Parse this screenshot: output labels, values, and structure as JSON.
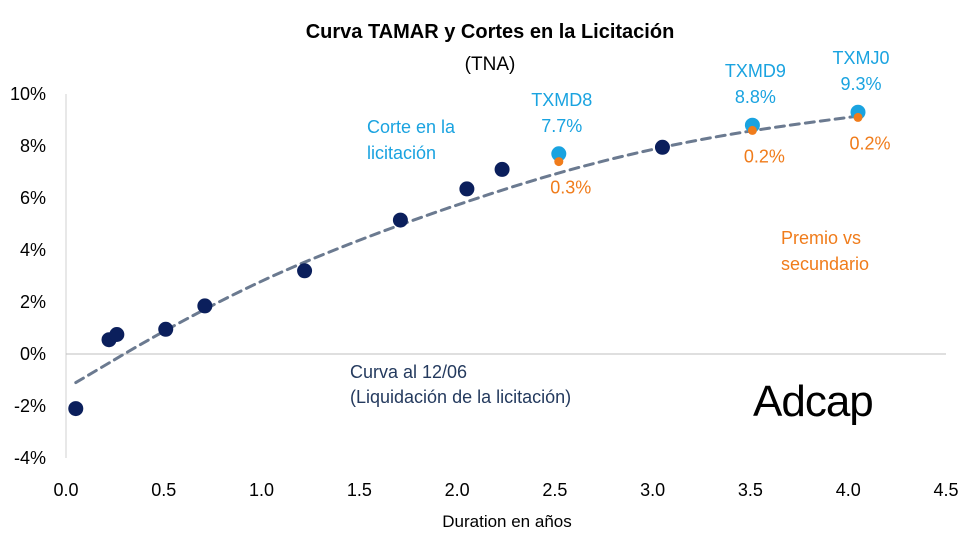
{
  "chart_data": {
    "type": "scatter",
    "title": "Curva TAMAR y Cortes en la Licitación",
    "subtitle": "(TNA)",
    "xlabel": "Duration en años",
    "ylabel": "",
    "xlim": [
      0,
      4.5
    ],
    "ylim": [
      -4,
      10
    ],
    "x_ticks": [
      0.0,
      0.5,
      1.0,
      1.5,
      2.0,
      2.5,
      3.0,
      3.5,
      4.0,
      4.5
    ],
    "x_tick_labels": [
      "0.0",
      "0.5",
      "1.0",
      "1.5",
      "2.0",
      "2.5",
      "3.0",
      "3.5",
      "4.0",
      "4.5"
    ],
    "y_ticks": [
      -4,
      -2,
      0,
      2,
      4,
      6,
      8,
      10
    ],
    "y_tick_labels": [
      "-4%",
      "-2%",
      "0%",
      "2%",
      "4%",
      "6%",
      "8%",
      "10%"
    ],
    "grid": false,
    "colors": {
      "curve_points": "#0b1f5c",
      "auction": "#1aa3e0",
      "premium": "#f07c1b",
      "trend": "#6b7a90"
    },
    "series": [
      {
        "points": [
          {
            "x": 0.05,
            "y": -2.1
          },
          {
            "x": 0.22,
            "y": 0.55
          },
          {
            "x": 0.26,
            "y": 0.75
          },
          {
            "x": 0.51,
            "y": 0.95
          },
          {
            "x": 0.71,
            "y": 1.85
          },
          {
            "x": 1.22,
            "y": 3.2
          },
          {
            "x": 1.71,
            "y": 5.15
          },
          {
            "x": 2.05,
            "y": 6.35
          },
          {
            "x": 2.23,
            "y": 7.1
          },
          {
            "x": 3.05,
            "y": 7.95
          }
        ]
      },
      {
        "points": [
          {
            "x": 2.52,
            "y": 7.7,
            "ticker": "TXMD8",
            "label": "7.7%"
          },
          {
            "x": 3.51,
            "y": 8.8,
            "ticker": "TXMD9",
            "label": "8.8%"
          },
          {
            "x": 4.05,
            "y": 9.3,
            "ticker": "TXMJ0",
            "label": "9.3%"
          }
        ]
      },
      {
        "points": [
          {
            "x": 2.52,
            "y": 7.4,
            "label": "0.3%"
          },
          {
            "x": 3.51,
            "y": 8.6,
            "label": "0.2%"
          },
          {
            "x": 4.05,
            "y": 9.1,
            "label": "0.2%"
          }
        ]
      }
    ],
    "trendline": {
      "style": "dashed",
      "x_range": [
        0.05,
        4.05
      ],
      "points": [
        {
          "x": 0.05,
          "y": -1.1
        },
        {
          "x": 0.5,
          "y": 0.9
        },
        {
          "x": 1.0,
          "y": 2.85
        },
        {
          "x": 1.5,
          "y": 4.4
        },
        {
          "x": 2.0,
          "y": 5.75
        },
        {
          "x": 2.5,
          "y": 6.95
        },
        {
          "x": 3.0,
          "y": 7.9
        },
        {
          "x": 3.5,
          "y": 8.6
        },
        {
          "x": 4.05,
          "y": 9.15
        }
      ]
    },
    "annotations": {
      "corte_line1": "Corte en la",
      "corte_line2": "licitación",
      "premio_line1": "Premio vs",
      "premio_line2": "secundario",
      "curva_line1": "Curva al 12/06",
      "curva_line2": "(Liquidación de la licitación)"
    },
    "logo_text": "Adcap"
  }
}
